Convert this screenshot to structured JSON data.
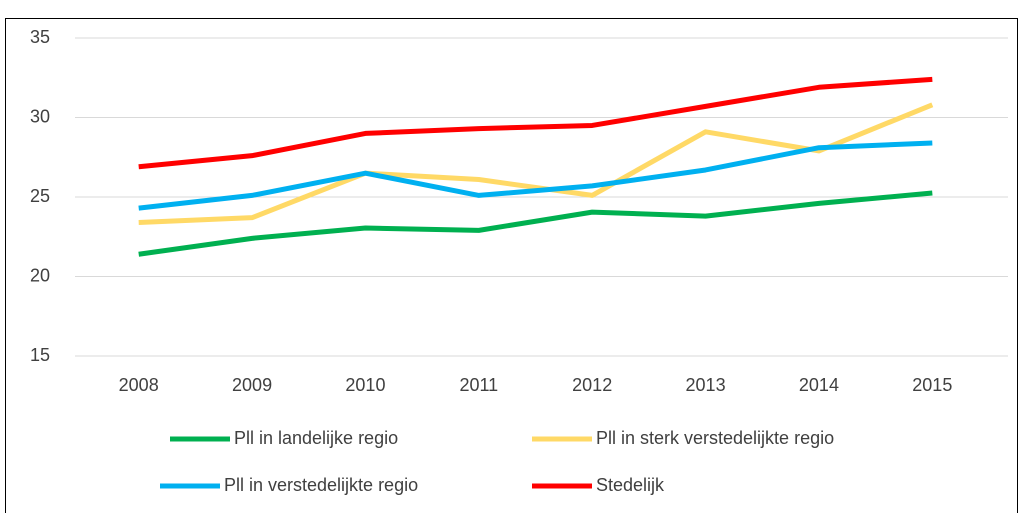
{
  "chart_data": {
    "type": "line",
    "categories": [
      "2008",
      "2009",
      "2010",
      "2011",
      "2012",
      "2013",
      "2014",
      "2015"
    ],
    "series": [
      {
        "name": "Pll in landelijke regio",
        "color": "#00b050",
        "values": [
          21.4,
          22.4,
          23.05,
          22.9,
          24.05,
          23.8,
          24.6,
          25.25
        ]
      },
      {
        "name": "Pll in sterk verstedelijkte regio",
        "color": "#ffd966",
        "values": [
          23.4,
          23.7,
          26.5,
          26.1,
          25.1,
          29.1,
          27.9,
          30.8
        ]
      },
      {
        "name": "Pll in verstedelijkte regio",
        "color": "#00b0f0",
        "values": [
          24.3,
          25.1,
          26.5,
          25.1,
          25.7,
          26.7,
          28.1,
          28.4
        ]
      },
      {
        "name": "Stedelijk",
        "color": "#ff0000",
        "values": [
          26.9,
          27.6,
          29.0,
          29.3,
          29.5,
          30.7,
          31.9,
          32.4
        ]
      }
    ],
    "ylim": [
      15,
      35
    ],
    "yticks": [
      15,
      20,
      25,
      30,
      35
    ],
    "grid": true,
    "legend": "bottom"
  }
}
